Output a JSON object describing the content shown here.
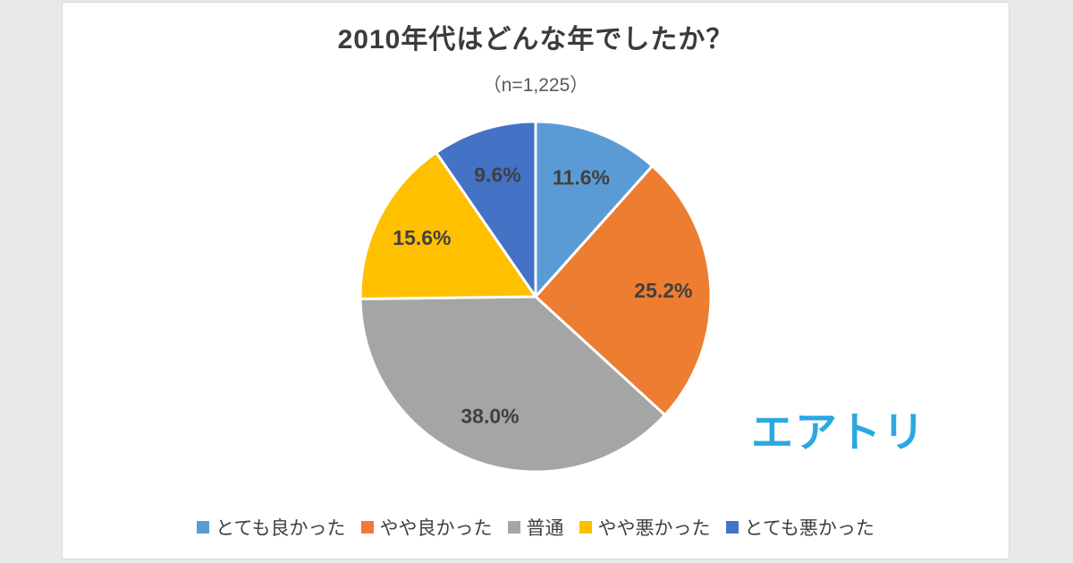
{
  "chart": {
    "title": "2010年代はどんな年でしたか？",
    "subtitle": "（n=1,225）"
  },
  "logo": {
    "text": "エアトリ",
    "color": "#2BA8E2"
  },
  "chart_data": {
    "type": "pie",
    "title": "2010年代はどんな年でしたか？",
    "subtitle": "（n=1,225）",
    "sample_size": 1225,
    "start_angle_deg": 0,
    "direction": "clockwise",
    "legend_position": "bottom",
    "value_suffix": "%",
    "label_color": "#404040",
    "slice_border_color": "#ffffff",
    "slices": [
      {
        "label": "とても良かった",
        "value": 11.6,
        "display": "11.6%",
        "color": "#5B9BD5"
      },
      {
        "label": "やや良かった",
        "value": 25.2,
        "display": "25.2%",
        "color": "#ED7D31"
      },
      {
        "label": "普通",
        "value": 38.0,
        "display": "38.0%",
        "color": "#A5A5A5"
      },
      {
        "label": "やや悪かった",
        "value": 15.6,
        "display": "15.6%",
        "color": "#FFC000"
      },
      {
        "label": "とても悪かった",
        "value": 9.6,
        "display": "9.6%",
        "color": "#4472C4"
      }
    ]
  }
}
